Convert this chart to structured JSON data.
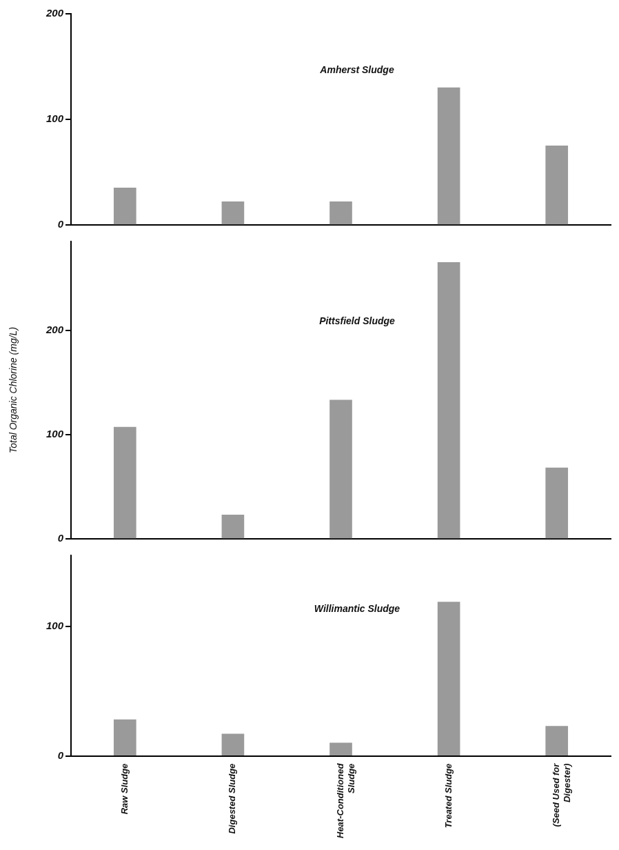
{
  "chart_data": [
    {
      "type": "bar",
      "title": "Amherst Sludge",
      "categories": [
        null,
        null,
        null,
        null,
        null
      ],
      "values": [
        35,
        22,
        22,
        130,
        75
      ],
      "color": "#9a9a9a",
      "ylim": [
        0,
        200
      ],
      "yticks": [
        0,
        100,
        200
      ],
      "tick_labels": "y"
    },
    {
      "type": "bar",
      "title": "Pittsfield Sludge",
      "ylabel": "Total Organic Chlorine (mg/L)",
      "categories": [
        null,
        null,
        null,
        null,
        null
      ],
      "values": [
        107,
        23,
        133,
        265,
        68
      ],
      "color": "#9a9a9a",
      "ylim": [
        0,
        285
      ],
      "yticks": [
        0,
        100,
        200
      ],
      "tick_labels": "y"
    },
    {
      "type": "bar",
      "title": "Willimantic Sludge",
      "categories": [
        "Raw Sludge",
        "Digested Sludge",
        "Heat-Conditioned Sludge",
        "Treated Sludge",
        "(Seed Used for Digester)"
      ],
      "values": [
        28,
        17,
        10,
        119,
        23
      ],
      "color": "#9a9a9a",
      "ylim": [
        0,
        155
      ],
      "yticks": [
        0,
        100
      ]
    }
  ]
}
